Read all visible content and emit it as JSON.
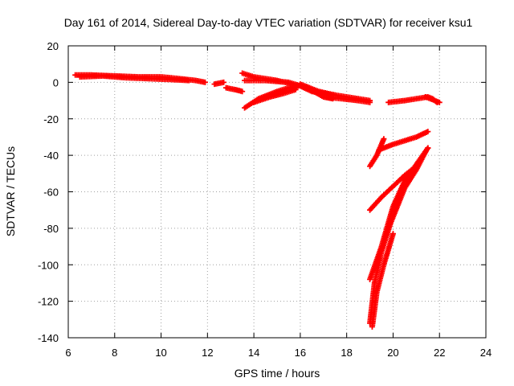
{
  "chart_data": {
    "type": "scatter",
    "title": "Day 161 of 2014, Sidereal Day-to-day VTEC variation (SDTVAR) for receiver ksu1",
    "xlabel": "GPS time / hours",
    "ylabel": "SDTVAR / TECUs",
    "xlim": [
      6,
      24
    ],
    "ylim": [
      -140,
      20
    ],
    "xticks": [
      6,
      8,
      10,
      12,
      14,
      16,
      18,
      20,
      22,
      24
    ],
    "yticks": [
      20,
      0,
      -20,
      -40,
      -60,
      -80,
      -100,
      -120,
      -140
    ],
    "grid": true,
    "marker": "plus",
    "color": "#ff0000",
    "tracks": [
      [
        [
          6.3,
          4
        ],
        [
          7.0,
          4
        ],
        [
          8.0,
          3.5
        ],
        [
          9.0,
          3
        ],
        [
          10.0,
          3
        ],
        [
          10.8,
          2
        ],
        [
          11.5,
          1
        ],
        [
          11.9,
          0
        ]
      ],
      [
        [
          6.5,
          3
        ],
        [
          7.5,
          3.5
        ],
        [
          8.5,
          2.5
        ],
        [
          9.5,
          2
        ],
        [
          10.5,
          1.5
        ],
        [
          11.2,
          1
        ]
      ],
      [
        [
          12.3,
          -1
        ],
        [
          12.7,
          0
        ]
      ],
      [
        [
          12.8,
          -3
        ],
        [
          13.2,
          -4
        ],
        [
          13.5,
          -5
        ]
      ],
      [
        [
          13.5,
          5
        ],
        [
          14.0,
          3
        ],
        [
          15.0,
          1
        ],
        [
          16.0,
          -2
        ],
        [
          16.5,
          -5
        ],
        [
          17.0,
          -6
        ],
        [
          17.5,
          -7
        ]
      ],
      [
        [
          13.6,
          1
        ],
        [
          14.5,
          1
        ],
        [
          15.5,
          0
        ],
        [
          16.3,
          -3
        ],
        [
          17.0,
          -8
        ],
        [
          17.4,
          -9
        ]
      ],
      [
        [
          13.6,
          -14
        ],
        [
          14.2,
          -9
        ],
        [
          15.0,
          -5
        ],
        [
          15.5,
          -3
        ],
        [
          15.9,
          -2
        ]
      ],
      [
        [
          14.0,
          -11
        ],
        [
          14.7,
          -8
        ],
        [
          15.3,
          -6
        ],
        [
          15.8,
          -4
        ]
      ],
      [
        [
          16.0,
          -1
        ],
        [
          16.8,
          -5
        ],
        [
          17.5,
          -7
        ],
        [
          18.0,
          -8
        ],
        [
          18.5,
          -9
        ],
        [
          19.0,
          -10
        ]
      ],
      [
        [
          17.0,
          -8
        ],
        [
          17.8,
          -9
        ],
        [
          18.5,
          -10
        ],
        [
          19.0,
          -11
        ]
      ],
      [
        [
          19.8,
          -11
        ],
        [
          20.5,
          -10
        ],
        [
          21.0,
          -9
        ],
        [
          21.5,
          -8
        ],
        [
          21.7,
          -9
        ],
        [
          21.9,
          -11
        ]
      ],
      [
        [
          21.4,
          -8
        ],
        [
          21.8,
          -10
        ],
        [
          22.0,
          -11
        ]
      ],
      [
        [
          19.0,
          -46
        ],
        [
          19.3,
          -40
        ],
        [
          19.6,
          -31
        ]
      ],
      [
        [
          19.4,
          -37
        ],
        [
          20.0,
          -34
        ],
        [
          21.0,
          -30
        ],
        [
          21.5,
          -27
        ]
      ],
      [
        [
          19.0,
          -70
        ],
        [
          19.5,
          -63
        ],
        [
          20.0,
          -57
        ],
        [
          20.5,
          -51
        ],
        [
          21.0,
          -46
        ],
        [
          21.5,
          -36
        ]
      ],
      [
        [
          19.0,
          -108
        ],
        [
          19.5,
          -90
        ],
        [
          20.0,
          -68
        ],
        [
          20.5,
          -54
        ],
        [
          21.0,
          -45
        ],
        [
          21.5,
          -36
        ]
      ],
      [
        [
          19.0,
          -132
        ],
        [
          19.2,
          -110
        ],
        [
          19.5,
          -93
        ],
        [
          19.9,
          -77
        ],
        [
          20.5,
          -58
        ],
        [
          21.0,
          -48
        ],
        [
          21.4,
          -38
        ]
      ],
      [
        [
          19.1,
          -134
        ],
        [
          19.3,
          -115
        ],
        [
          19.6,
          -100
        ],
        [
          20.0,
          -83
        ]
      ]
    ]
  }
}
